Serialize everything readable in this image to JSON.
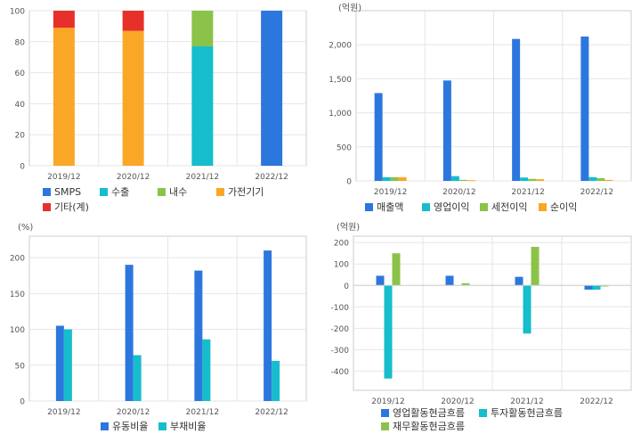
{
  "colors": {
    "blue": "#2c77de",
    "cyan": "#16bdcc",
    "green": "#8bc34a",
    "orange": "#fba726",
    "red": "#e8302a",
    "grid": "#e6e6e6",
    "axis": "#999999",
    "text": "#555555"
  },
  "chart_data": [
    {
      "type": "bar",
      "stacked": true,
      "categories": [
        "2019/12",
        "2020/12",
        "2021/12",
        "2022/12"
      ],
      "ylim": [
        0,
        100
      ],
      "yticks": [
        0,
        20,
        40,
        60,
        80,
        100
      ],
      "unit_label": "",
      "series": [
        {
          "name": "SMPS",
          "color": "blue",
          "values": [
            0,
            0,
            0,
            100
          ]
        },
        {
          "name": "수출",
          "color": "cyan",
          "values": [
            0,
            0,
            77,
            0
          ]
        },
        {
          "name": "내수",
          "color": "green",
          "values": [
            0,
            0,
            23,
            0
          ]
        },
        {
          "name": "가전기기",
          "color": "orange",
          "values": [
            89,
            87,
            0,
            0
          ]
        },
        {
          "name": "기타(계)",
          "color": "red",
          "values": [
            11,
            13,
            0,
            0
          ]
        }
      ],
      "legend_position": "bottom",
      "grid": true
    },
    {
      "type": "bar",
      "categories": [
        "2019/12",
        "2020/12",
        "2021/12",
        "2022/12"
      ],
      "ylim": [
        0,
        2500
      ],
      "yticks": [
        0,
        500,
        1000,
        1500,
        2000
      ],
      "ytick_labels": [
        "0",
        "500",
        "1,000",
        "1,500",
        "2,000"
      ],
      "unit_label": "(억원)",
      "series": [
        {
          "name": "매출액",
          "color": "blue",
          "values": [
            1290,
            1475,
            2085,
            2120
          ]
        },
        {
          "name": "영업이익",
          "color": "cyan",
          "values": [
            55,
            70,
            50,
            55
          ]
        },
        {
          "name": "세전이익",
          "color": "green",
          "values": [
            55,
            15,
            30,
            40
          ]
        },
        {
          "name": "순이익",
          "color": "orange",
          "values": [
            55,
            10,
            25,
            15
          ]
        }
      ],
      "legend_position": "bottom",
      "grid": true
    },
    {
      "type": "bar",
      "categories": [
        "2019/12",
        "2020/12",
        "2021/12",
        "2022/12"
      ],
      "ylim": [
        0,
        230
      ],
      "yticks": [
        0,
        50,
        100,
        150,
        200
      ],
      "unit_label": "(%)",
      "series": [
        {
          "name": "유동비율",
          "color": "blue",
          "values": [
            105,
            190,
            182,
            210
          ]
        },
        {
          "name": "부채비율",
          "color": "cyan",
          "values": [
            100,
            64,
            86,
            56
          ]
        }
      ],
      "legend_position": "bottom",
      "grid": true
    },
    {
      "type": "bar",
      "categories": [
        "2019/12",
        "2020/12",
        "2021/12",
        "2022/12"
      ],
      "ylim": [
        -490,
        230
      ],
      "yticks": [
        -400,
        -300,
        -200,
        -100,
        0,
        100,
        200
      ],
      "unit_label": "(억원)",
      "series": [
        {
          "name": "영업활동현금흐름",
          "color": "blue",
          "values": [
            45,
            45,
            40,
            -20
          ]
        },
        {
          "name": "투자활동현금흐름",
          "color": "cyan",
          "values": [
            -435,
            0,
            -225,
            -20
          ]
        },
        {
          "name": "재무활동현금흐름",
          "color": "green",
          "values": [
            150,
            10,
            180,
            -5
          ]
        }
      ],
      "legend_position": "bottom",
      "grid": true
    }
  ]
}
